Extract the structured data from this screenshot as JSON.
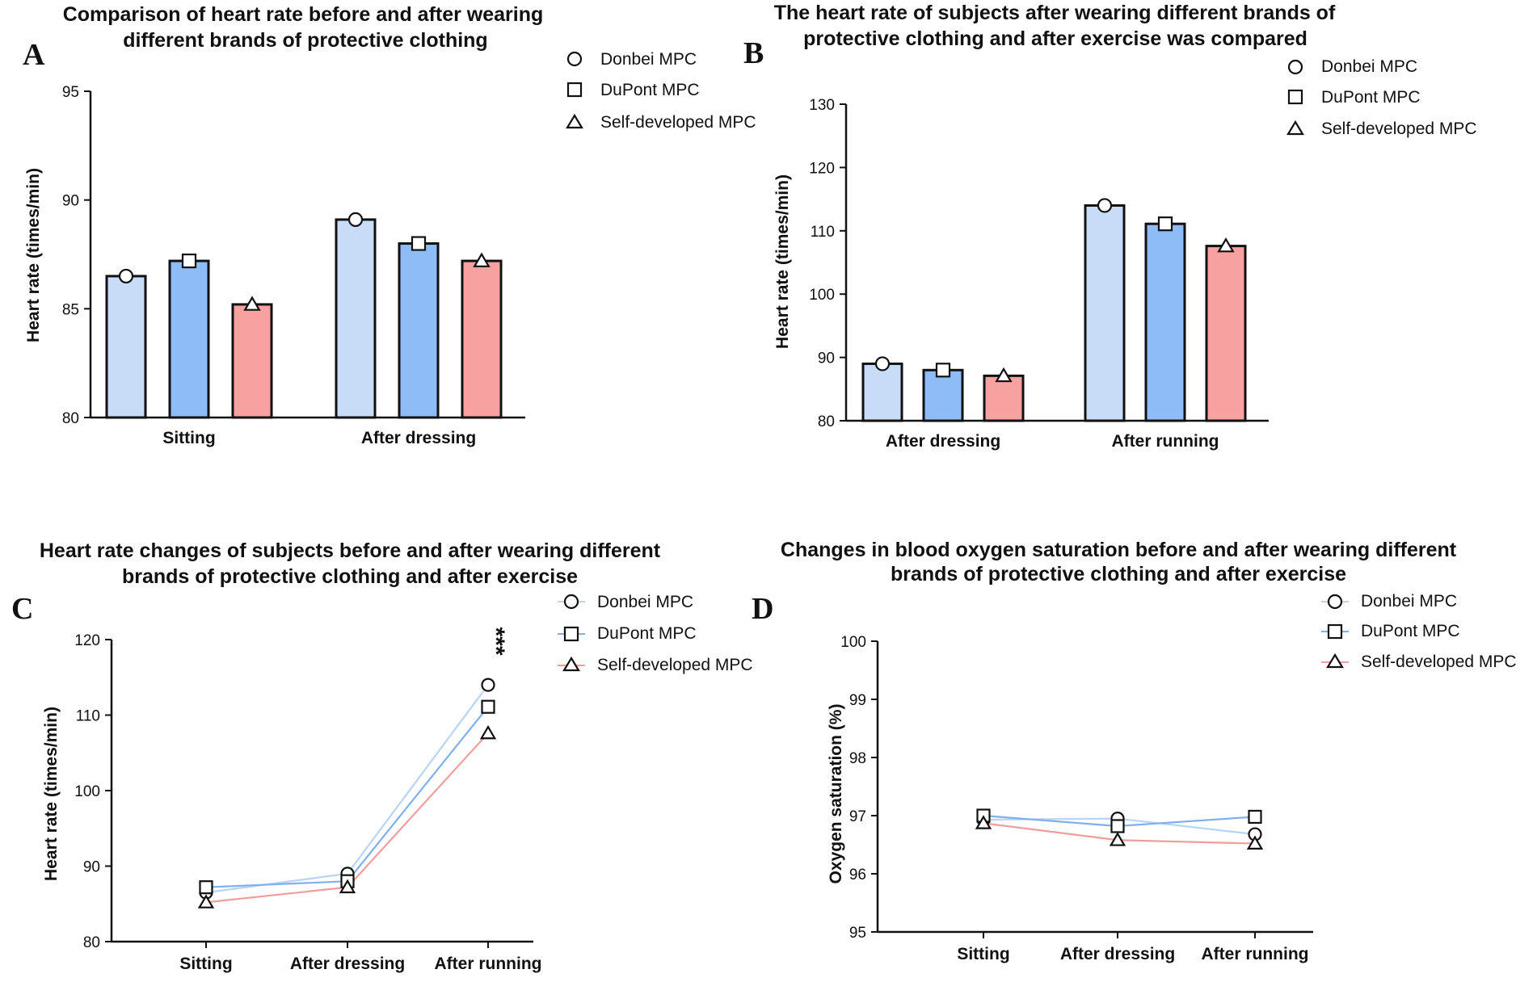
{
  "chart_data": [
    {
      "panel": "A",
      "type": "bar",
      "title_lines": [
        "Comparison of heart rate before and after wearing",
        "different brands of protective clothing"
      ],
      "categories": [
        "Sitting",
        "After dressing"
      ],
      "series": [
        {
          "name": "Donbei MPC",
          "marker": "circle",
          "color": "#c9dcf7",
          "values": [
            86.5,
            89.1
          ]
        },
        {
          "name": "DuPont MPC",
          "marker": "square",
          "color": "#8dbcf7",
          "values": [
            87.2,
            88.0
          ]
        },
        {
          "name": "Self-developed MPC",
          "marker": "triangle",
          "color": "#f7a1a1",
          "values": [
            85.2,
            87.2
          ]
        }
      ],
      "ylabel": "Heart rate (times/min)",
      "ylim": [
        80,
        95
      ],
      "yticks": [
        "80",
        "85",
        "90",
        "95"
      ]
    },
    {
      "panel": "B",
      "type": "bar",
      "title_lines": [
        "The heart rate of subjects after wearing different brands of",
        "protective clothing and after exercise was compared"
      ],
      "categories": [
        "After dressing",
        "After running"
      ],
      "series": [
        {
          "name": "Donbei MPC",
          "marker": "circle",
          "color": "#c9dcf7",
          "values": [
            89.0,
            114.0
          ]
        },
        {
          "name": "DuPont MPC",
          "marker": "square",
          "color": "#8dbcf7",
          "values": [
            88.0,
            111.1
          ]
        },
        {
          "name": "Self-developed MPC",
          "marker": "triangle",
          "color": "#f7a1a1",
          "values": [
            87.1,
            107.6
          ]
        }
      ],
      "ylabel": "Heart rate (times/min)",
      "ylim": [
        80,
        130
      ],
      "yticks": [
        "80",
        "90",
        "100",
        "110",
        "120",
        "130"
      ]
    },
    {
      "panel": "C",
      "type": "line",
      "title_lines": [
        "Heart rate changes of subjects before and after wearing different",
        "brands of protective clothing and after exercise"
      ],
      "categories": [
        "Sitting",
        "After dressing",
        "After running"
      ],
      "series": [
        {
          "name": "Donbei MPC",
          "marker": "circle",
          "color": "#b9d3f5",
          "values": [
            86.5,
            89.0,
            114.0
          ]
        },
        {
          "name": "DuPont MPC",
          "marker": "square",
          "color": "#7fb0ee",
          "values": [
            87.2,
            88.0,
            111.1
          ]
        },
        {
          "name": "Self-developed MPC",
          "marker": "triangle",
          "color": "#ef9d9d",
          "values": [
            85.2,
            87.2,
            107.6
          ]
        }
      ],
      "ylabel": "Heart rate (times/min)",
      "ylim": [
        80,
        120
      ],
      "yticks": [
        "80",
        "90",
        "100",
        "110",
        "120"
      ],
      "annotation": "***"
    },
    {
      "panel": "D",
      "type": "line",
      "title_lines": [
        "Changes in blood oxygen saturation before and after wearing different",
        "brands of protective clothing and after exercise"
      ],
      "categories": [
        "Sitting",
        "After dressing",
        "After running"
      ],
      "series": [
        {
          "name": "Donbei MPC",
          "marker": "circle",
          "color": "#b9d3f5",
          "values": [
            96.93,
            96.95,
            96.68
          ]
        },
        {
          "name": "DuPont MPC",
          "marker": "square",
          "color": "#7fb0ee",
          "values": [
            97.0,
            96.82,
            96.98
          ]
        },
        {
          "name": "Self-developed MPC",
          "marker": "triangle",
          "color": "#ef9d9d",
          "values": [
            96.87,
            96.58,
            96.52
          ]
        }
      ],
      "ylabel": "Oxygen saturation (%)",
      "ylim": [
        95,
        100
      ],
      "yticks": [
        "95",
        "96",
        "97",
        "98",
        "99",
        "100"
      ]
    }
  ]
}
